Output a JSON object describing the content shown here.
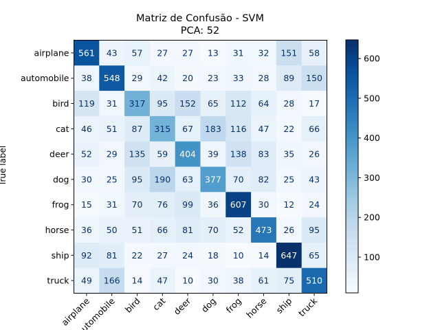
{
  "chart_data": {
    "type": "heatmap",
    "title": "Matriz de Confusão - SVM",
    "subtitle": "PCA: 52",
    "xlabel": "",
    "ylabel": "True label",
    "x_categories": [
      "airplane",
      "automobile",
      "bird",
      "cat",
      "deer",
      "dog",
      "frog",
      "horse",
      "ship",
      "truck"
    ],
    "y_categories": [
      "airplane",
      "automobile",
      "bird",
      "cat",
      "deer",
      "dog",
      "frog",
      "horse",
      "ship",
      "truck"
    ],
    "values": [
      [
        561,
        43,
        57,
        27,
        27,
        13,
        31,
        32,
        151,
        58
      ],
      [
        38,
        548,
        29,
        42,
        20,
        23,
        33,
        28,
        89,
        150
      ],
      [
        119,
        31,
        317,
        95,
        152,
        65,
        112,
        64,
        28,
        17
      ],
      [
        46,
        51,
        87,
        315,
        67,
        183,
        116,
        47,
        22,
        66
      ],
      [
        52,
        29,
        135,
        59,
        404,
        39,
        138,
        83,
        35,
        26
      ],
      [
        30,
        25,
        95,
        190,
        63,
        377,
        70,
        82,
        25,
        43
      ],
      [
        15,
        31,
        70,
        76,
        99,
        36,
        607,
        30,
        12,
        24
      ],
      [
        36,
        50,
        51,
        66,
        81,
        70,
        52,
        473,
        26,
        95
      ],
      [
        92,
        81,
        22,
        27,
        24,
        18,
        10,
        14,
        647,
        65
      ],
      [
        49,
        166,
        14,
        47,
        10,
        30,
        38,
        61,
        75,
        510
      ]
    ],
    "colormap": "Blues",
    "value_range": [
      10,
      647
    ],
    "colorbar_ticks": [
      100,
      200,
      300,
      400,
      500,
      600
    ],
    "grid": false,
    "light_text_color": "#ffffff",
    "dark_text_color": "#08306b"
  }
}
